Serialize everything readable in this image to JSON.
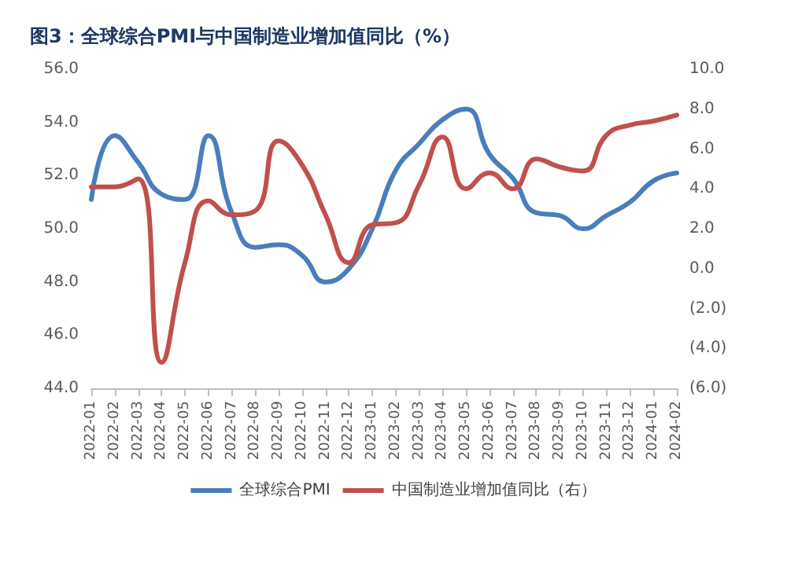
{
  "chart_data": {
    "type": "line",
    "title": "图3：全球综合PMI与中国制造业增加值同比（%）",
    "categories": [
      "2022-01",
      "2022-02",
      "2022-03",
      "2022-04",
      "2022-05",
      "2022-06",
      "2022-07",
      "2022-08",
      "2022-09",
      "2022-10",
      "2022-11",
      "2022-12",
      "2023-01",
      "2023-02",
      "2023-03",
      "2023-04",
      "2023-05",
      "2023-06",
      "2023-07",
      "2023-08",
      "2023-09",
      "2023-10",
      "2023-11",
      "2023-12",
      "2024-01",
      "2024-02"
    ],
    "series": [
      {
        "name": "全球综合PMI",
        "color": "#4a7ebb",
        "values": [
          51.1,
          53.5,
          52.5,
          51.3,
          51.1,
          53.5,
          50.6,
          49.3,
          49.4,
          49.0,
          48.0,
          48.5,
          50.0,
          52.2,
          53.2,
          54.1,
          54.5,
          52.8,
          51.9,
          50.6,
          50.5,
          50.0,
          50.5,
          51.0,
          51.8,
          52.1
        ]
      },
      {
        "name": "中国制造业增加值同比（右）",
        "color": "#c0504d",
        "axis": "y2",
        "values": [
          4.1,
          4.1,
          4.5,
          -4.7,
          0.3,
          3.4,
          2.7,
          2.9,
          6.4,
          5.2,
          2.7,
          0.3,
          2.2,
          2.3,
          4.2,
          6.6,
          4.0,
          4.8,
          4.0,
          5.5,
          5.1,
          4.9,
          6.7,
          7.2,
          7.4,
          7.7
        ]
      }
    ],
    "ylim": [
      44,
      56
    ],
    "yticks": [
      {
        "value": 44,
        "label": "44.0"
      },
      {
        "value": 46,
        "label": "46.0"
      },
      {
        "value": 48,
        "label": "48.0"
      },
      {
        "value": 50,
        "label": "50.0"
      },
      {
        "value": 52,
        "label": "52.0"
      },
      {
        "value": 54,
        "label": "54.0"
      },
      {
        "value": 56,
        "label": "56.0"
      }
    ],
    "y2lim": [
      -6,
      10
    ],
    "y2ticks": [
      {
        "value": -6,
        "label": "(6.0)"
      },
      {
        "value": -4,
        "label": "(4.0)"
      },
      {
        "value": -2,
        "label": "(2.0)"
      },
      {
        "value": 0,
        "label": "0.0"
      },
      {
        "value": 2,
        "label": "2.0"
      },
      {
        "value": 4,
        "label": "4.0"
      },
      {
        "value": 6,
        "label": "6.0"
      },
      {
        "value": 8,
        "label": "8.0"
      },
      {
        "value": 10,
        "label": "10.0"
      }
    ],
    "grid": false,
    "legend": "bottom",
    "marker": "none",
    "line_style": "solid"
  }
}
